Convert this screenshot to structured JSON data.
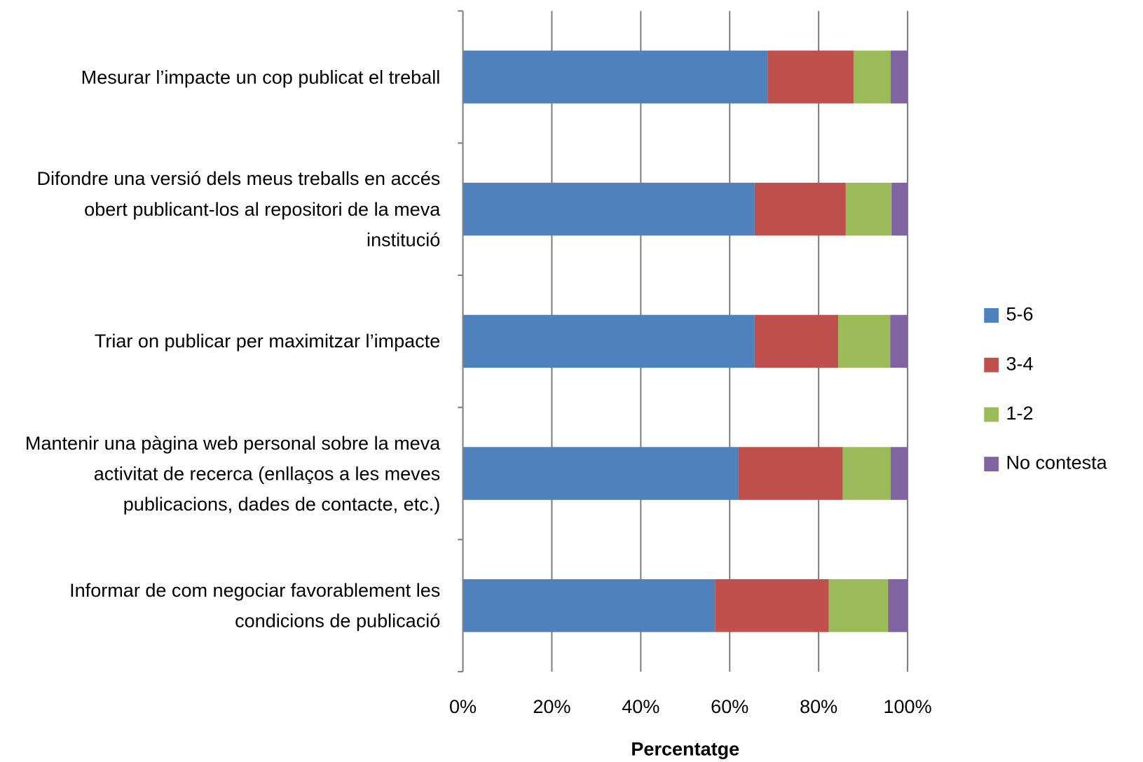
{
  "chart_data": {
    "type": "stacked_bar_horizontal",
    "categories": [
      "Mesurar l’impacte un cop publicat el treball",
      "Difondre una versió dels meus treballs en accés obert publicant-los al repositori de la meva institució",
      "Triar on publicar per maximitzar l’impacte",
      "Mantenir una pàgina web personal sobre la meva activitat de recerca (enllaços a les meves publicacions, dades de contacte, etc.)",
      "Informar de com negociar favorablement les condicions de publicació"
    ],
    "series": [
      {
        "name": "5-6",
        "color": "#4f81bd",
        "values": [
          68.5,
          65.6,
          65.6,
          62.0,
          56.7
        ]
      },
      {
        "name": "3-4",
        "color": "#c0504d",
        "values": [
          19.4,
          20.5,
          18.8,
          23.4,
          25.6
        ]
      },
      {
        "name": "1-2",
        "color": "#9bbb59",
        "values": [
          8.3,
          10.3,
          11.7,
          10.8,
          13.3
        ]
      },
      {
        "name": "No contesta",
        "color": "#8064a2",
        "values": [
          3.8,
          3.6,
          3.9,
          3.8,
          4.4
        ]
      }
    ],
    "xlabel": "Percentatge",
    "xlim": [
      0,
      100
    ],
    "xticks": [
      {
        "value": 0,
        "label": "0%"
      },
      {
        "value": 20,
        "label": "20%"
      },
      {
        "value": 40,
        "label": "40%"
      },
      {
        "value": 60,
        "label": "60%"
      },
      {
        "value": 80,
        "label": "80%"
      },
      {
        "value": 100,
        "label": "100%"
      }
    ],
    "grid": true,
    "legend": "right"
  }
}
